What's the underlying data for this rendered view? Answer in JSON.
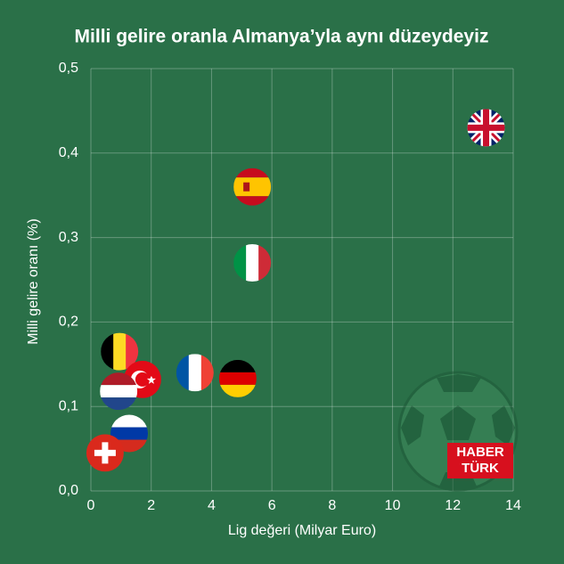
{
  "chart_data": {
    "type": "scatter",
    "title": "Milli gelire oranla Almanya’yla aynı düzeydeyiz",
    "xlabel": "Lig değeri (Milyar Euro)",
    "ylabel": "Milli gelire oranı (%)",
    "x": [
      13.1,
      5.35,
      5.35,
      0.95,
      3.45,
      4.87,
      1.71,
      0.92,
      1.27,
      0.47
    ],
    "values": [
      0.43,
      0.36,
      0.27,
      0.165,
      0.14,
      0.133,
      0.132,
      0.118,
      0.068,
      0.045
    ],
    "xlim": [
      0,
      14
    ],
    "xticks": [
      0,
      2,
      4,
      6,
      8,
      10,
      12,
      14
    ],
    "ylim": [
      0,
      0.5
    ],
    "yticks": [
      {
        "value": 0,
        "label": "0,0"
      },
      {
        "value": 0.1,
        "label": "0,1"
      },
      {
        "value": 0.2,
        "label": "0,2"
      },
      {
        "value": 0.3,
        "label": "0,3"
      },
      {
        "value": 0.4,
        "label": "0,4"
      },
      {
        "value": 0.5,
        "label": "0,5"
      }
    ],
    "grid": true,
    "logo": [
      "HABER",
      "TÜRK"
    ]
  }
}
